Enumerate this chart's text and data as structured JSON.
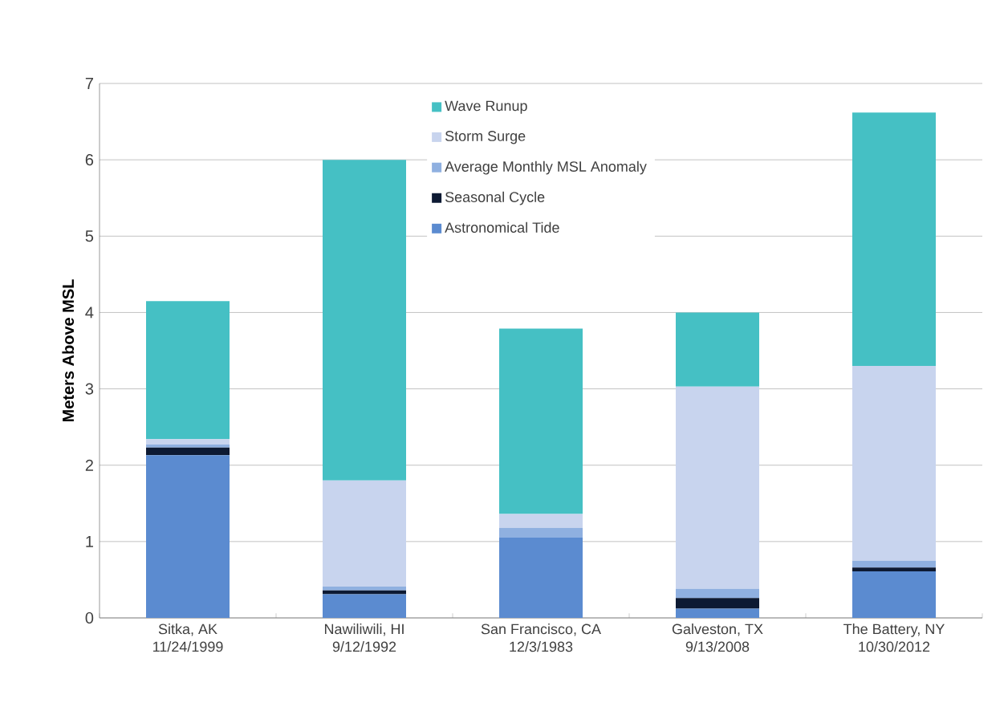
{
  "chart_data": {
    "type": "bar",
    "stacked": true,
    "ylabel": "Meters Above MSL",
    "categories": [
      "Sitka, AK\n11/24/1999",
      "Nawiliwili, HI\n9/12/1992",
      "San Francisco, CA\n12/3/1983",
      "Galveston, TX\n9/13/2008",
      "The Battery, NY\n10/30/2012"
    ],
    "series": [
      {
        "name": "Astronomical Tide",
        "color": "#5b8bd0",
        "values": [
          2.13,
          0.31,
          1.05,
          0.12,
          0.61
        ]
      },
      {
        "name": "Seasonal Cycle",
        "color": "#0d1a33",
        "values": [
          0.1,
          0.05,
          0,
          0.14,
          0.05
        ]
      },
      {
        "name": "Average Monthly MSL Anomaly",
        "color": "#8fb0e0",
        "values": [
          0.04,
          0.05,
          0.13,
          0.12,
          0.09
        ]
      },
      {
        "name": "Storm Surge",
        "color": "#c8d4ee",
        "values": [
          0.07,
          1.39,
          0.18,
          2.65,
          2.55
        ]
      },
      {
        "name": "Wave Runup",
        "color": "#45c0c4",
        "values": [
          1.81,
          4.2,
          2.43,
          0.97,
          3.32
        ]
      }
    ],
    "ylim": [
      0,
      7
    ],
    "yticks": [
      0,
      1,
      2,
      3,
      4,
      5,
      6,
      7
    ],
    "grid": "y",
    "legend": "top"
  }
}
